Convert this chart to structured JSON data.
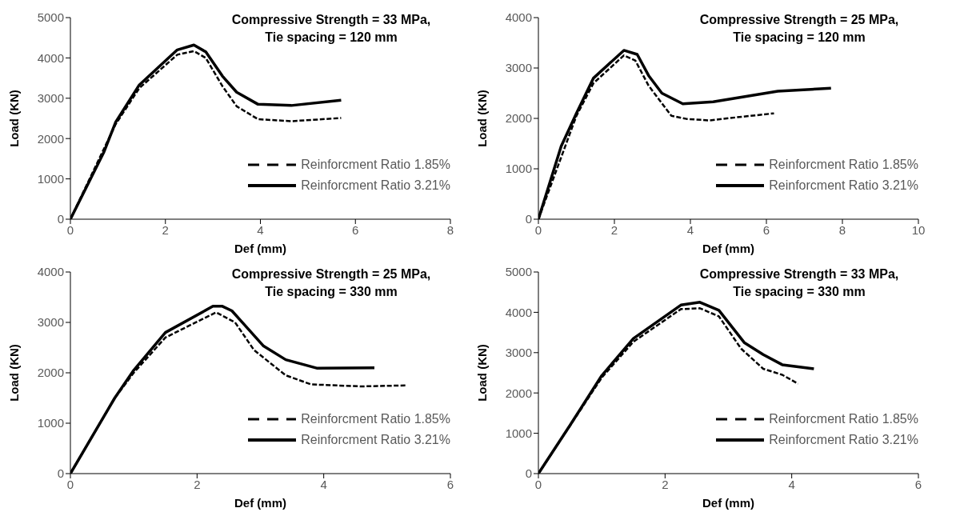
{
  "chart_data": [
    {
      "type": "line",
      "title": "Compressive Strength = 33 MPa,",
      "subtitle": "Tie spacing = 120 mm",
      "xlabel": "Def (mm)",
      "ylabel": "Load (KN)",
      "xlim": [
        0,
        8
      ],
      "xticks": [
        0,
        2,
        4,
        6,
        8
      ],
      "ylim": [
        0,
        5000
      ],
      "yticks": [
        0,
        1000,
        2000,
        3000,
        4000,
        5000
      ],
      "grid": false,
      "legend": "right",
      "marker": "none",
      "series": [
        {
          "name": "Reinforcment Ratio 1.85%",
          "color": "#000000",
          "line_style": "dashed",
          "x": [
            0,
            0.95,
            1.45,
            2.25,
            2.6,
            2.85,
            3.2,
            3.5,
            3.95,
            4.65,
            5.7
          ],
          "values": [
            0,
            2350,
            3250,
            4080,
            4170,
            4000,
            3300,
            2800,
            2480,
            2430,
            2510
          ]
        },
        {
          "name": "Reinforcment Ratio 3.21%",
          "color": "#000000",
          "line_style": "solid",
          "x": [
            0,
            0.7,
            0.95,
            1.45,
            2.25,
            2.6,
            2.85,
            3.2,
            3.5,
            3.95,
            4.65,
            5.7
          ],
          "values": [
            0,
            1650,
            2400,
            3330,
            4200,
            4320,
            4150,
            3550,
            3150,
            2850,
            2820,
            2950
          ]
        }
      ]
    },
    {
      "type": "line",
      "title": "Compressive Strength = 25 MPa,",
      "subtitle": "Tie spacing = 120 mm",
      "xlabel": "Def (mm)",
      "ylabel": "Load (KN)",
      "xlim": [
        0,
        10
      ],
      "xticks": [
        0,
        2,
        4,
        6,
        8,
        10
      ],
      "ylim": [
        0,
        4000
      ],
      "yticks": [
        0,
        1000,
        2000,
        3000,
        4000
      ],
      "grid": false,
      "legend": "right",
      "marker": "none",
      "series": [
        {
          "name": "Reinforcment Ratio 1.85%",
          "color": "#000000",
          "line_style": "dashed",
          "x": [
            0,
            1,
            1.45,
            2.25,
            2.55,
            2.9,
            3.5,
            3.9,
            4.5,
            5.2,
            6.2
          ],
          "values": [
            0,
            2050,
            2700,
            3250,
            3150,
            2650,
            2050,
            1990,
            1960,
            2020,
            2100
          ]
        },
        {
          "name": "Reinforcment Ratio 3.21%",
          "color": "#000000",
          "line_style": "solid",
          "x": [
            0,
            0.6,
            1,
            1.45,
            2.25,
            2.6,
            2.9,
            3.25,
            3.8,
            4.6,
            6.3,
            7.7
          ],
          "values": [
            0,
            1450,
            2100,
            2800,
            3350,
            3270,
            2850,
            2500,
            2290,
            2330,
            2540,
            2600
          ]
        }
      ]
    },
    {
      "type": "line",
      "title": "Compressive Strength = 25 MPa,",
      "subtitle": "Tie spacing = 330 mm",
      "xlabel": "Def (mm)",
      "ylabel": "Load (KN)",
      "xlim": [
        0,
        6
      ],
      "xticks": [
        0,
        2,
        4,
        6
      ],
      "ylim": [
        0,
        4000
      ],
      "yticks": [
        0,
        1000,
        2000,
        3000,
        4000
      ],
      "grid": false,
      "legend": "right",
      "marker": "none",
      "series": [
        {
          "name": "Reinforcment Ratio 1.85%",
          "color": "#000000",
          "line_style": "dashed",
          "x": [
            0,
            0.7,
            1,
            1.5,
            2.3,
            2.6,
            2.9,
            3.4,
            3.8,
            4.6,
            5.3
          ],
          "values": [
            0,
            1500,
            2000,
            2700,
            3200,
            3000,
            2450,
            1950,
            1770,
            1730,
            1750
          ]
        },
        {
          "name": "Reinforcment Ratio 3.21%",
          "color": "#000000",
          "line_style": "solid",
          "x": [
            0,
            0.7,
            1,
            1.5,
            2.25,
            2.4,
            2.55,
            2.75,
            3.05,
            3.4,
            3.9,
            4.8
          ],
          "values": [
            0,
            1500,
            2050,
            2800,
            3320,
            3320,
            3230,
            2950,
            2530,
            2260,
            2090,
            2100
          ]
        }
      ]
    },
    {
      "type": "line",
      "title": "Compressive Strength = 33 MPa,",
      "subtitle": "Tie spacing = 330 mm",
      "xlabel": "Def (mm)",
      "ylabel": "Load (KN)",
      "xlim": [
        0,
        6
      ],
      "xticks": [
        0,
        2,
        4,
        6
      ],
      "ylim": [
        0,
        5000
      ],
      "yticks": [
        0,
        1000,
        2000,
        3000,
        4000,
        5000
      ],
      "grid": false,
      "legend": "right",
      "marker": "none",
      "series": [
        {
          "name": "Reinforcment Ratio 1.85%",
          "color": "#000000",
          "line_style": "dashed",
          "x": [
            0,
            1,
            1.5,
            2.25,
            2.55,
            2.85,
            3.2,
            3.55,
            3.85,
            4.1
          ],
          "values": [
            0,
            2380,
            3270,
            4080,
            4100,
            3900,
            3100,
            2600,
            2450,
            2230
          ]
        },
        {
          "name": "Reinforcment Ratio 3.21%",
          "color": "#000000",
          "line_style": "solid",
          "x": [
            0,
            0.5,
            1,
            1.5,
            2.25,
            2.55,
            2.85,
            3.25,
            3.55,
            3.85,
            4.35
          ],
          "values": [
            0,
            1200,
            2430,
            3350,
            4180,
            4250,
            4050,
            3250,
            2950,
            2700,
            2600
          ]
        }
      ]
    }
  ]
}
